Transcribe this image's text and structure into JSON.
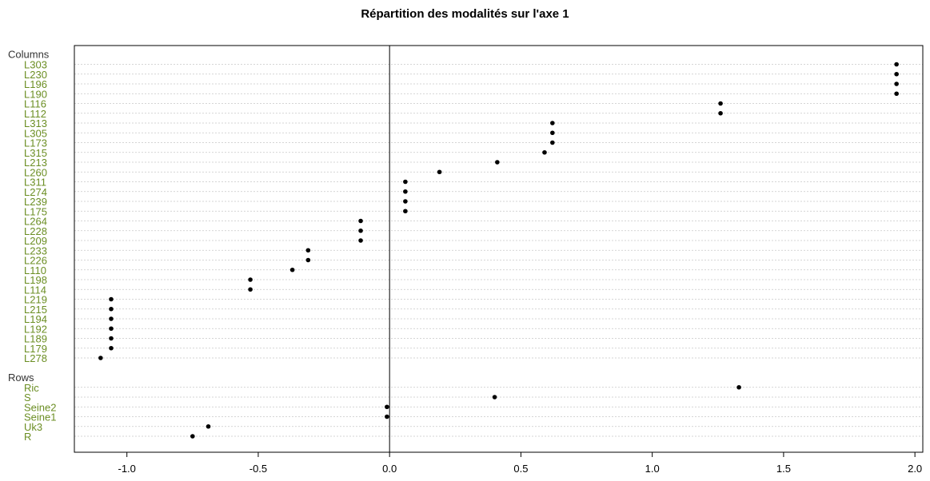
{
  "chart_data": {
    "type": "scatter",
    "subtype": "dotchart",
    "title": "Répartition des modalités sur l'axe 1",
    "xlabel": "",
    "ylabel": "",
    "xlim": [
      -1.2,
      2.03
    ],
    "x_ticks": [
      "-1.0",
      "-0.5",
      "0.0",
      "0.5",
      "1.0",
      "1.5",
      "2.0"
    ],
    "x_tick_values": [
      -1.0,
      -0.5,
      0.0,
      0.5,
      1.0,
      1.5,
      2.0
    ],
    "reference_line_x": 0,
    "grid": "dotted horizontal per row",
    "label_color": "#6b8e23",
    "group_label_color": "#333333",
    "groups": [
      {
        "name": "Columns",
        "points": [
          {
            "label": "L303",
            "value": 1.93
          },
          {
            "label": "L230",
            "value": 1.93
          },
          {
            "label": "L196",
            "value": 1.93
          },
          {
            "label": "L190",
            "value": 1.93
          },
          {
            "label": "L116",
            "value": 1.26
          },
          {
            "label": "L112",
            "value": 1.26
          },
          {
            "label": "L313",
            "value": 0.62
          },
          {
            "label": "L305",
            "value": 0.62
          },
          {
            "label": "L173",
            "value": 0.62
          },
          {
            "label": "L315",
            "value": 0.59
          },
          {
            "label": "L213",
            "value": 0.41
          },
          {
            "label": "L260",
            "value": 0.19
          },
          {
            "label": "L311",
            "value": 0.06
          },
          {
            "label": "L274",
            "value": 0.06
          },
          {
            "label": "L239",
            "value": 0.06
          },
          {
            "label": "L175",
            "value": 0.06
          },
          {
            "label": "L264",
            "value": -0.11
          },
          {
            "label": "L228",
            "value": -0.11
          },
          {
            "label": "L209",
            "value": -0.11
          },
          {
            "label": "L233",
            "value": -0.31
          },
          {
            "label": "L226",
            "value": -0.31
          },
          {
            "label": "L110",
            "value": -0.37
          },
          {
            "label": "L198",
            "value": -0.53
          },
          {
            "label": "L114",
            "value": -0.53
          },
          {
            "label": "L219",
            "value": -1.06
          },
          {
            "label": "L215",
            "value": -1.06
          },
          {
            "label": "L194",
            "value": -1.06
          },
          {
            "label": "L192",
            "value": -1.06
          },
          {
            "label": "L189",
            "value": -1.06
          },
          {
            "label": "L179",
            "value": -1.06
          },
          {
            "label": "L278",
            "value": -1.1
          }
        ]
      },
      {
        "name": "Rows",
        "points": [
          {
            "label": "Ric",
            "value": 1.33
          },
          {
            "label": "S",
            "value": 0.4
          },
          {
            "label": "Seine2",
            "value": -0.01
          },
          {
            "label": "Seine1",
            "value": -0.01
          },
          {
            "label": "Uk3",
            "value": -0.69
          },
          {
            "label": "R",
            "value": -0.75
          }
        ]
      }
    ]
  }
}
